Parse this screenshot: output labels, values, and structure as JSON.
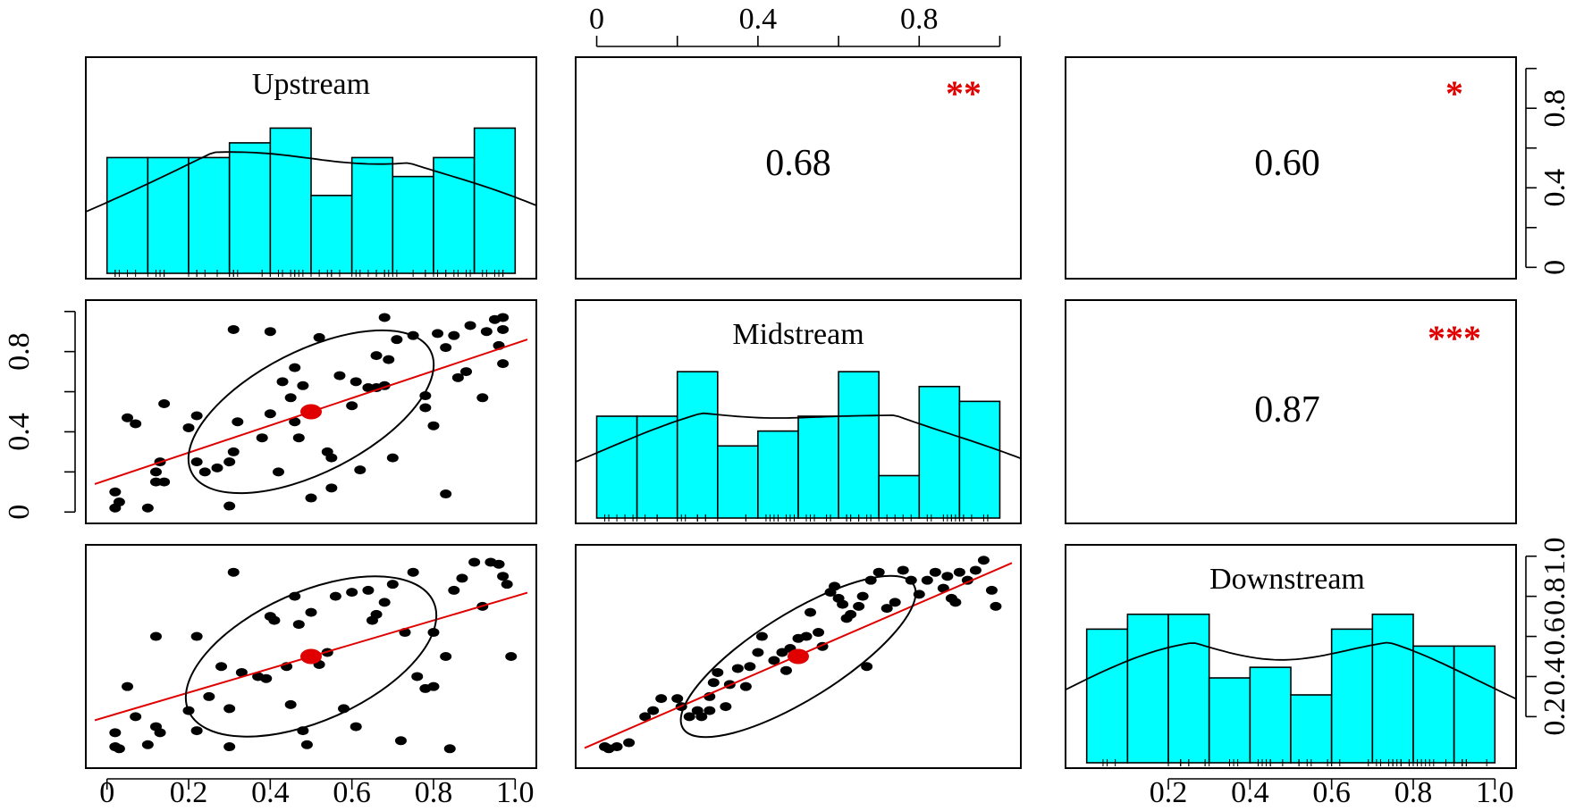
{
  "chart_data": {
    "type": "scatter-matrix",
    "variables": [
      "Upstream",
      "Midstream",
      "Downstream"
    ],
    "top_axis_ticks": [
      "0",
      "0.4",
      "0.8"
    ],
    "right_axis_top_ticks": [
      "0",
      "0.4",
      "0.8"
    ],
    "left_axis_mid_ticks": [
      "0",
      "0.4",
      "0.8"
    ],
    "right_axis_bottom_ticks": [
      "0.2",
      "0.4",
      "0.6",
      "0.8",
      "1.0"
    ],
    "bottom_axis_left_ticks": [
      "0",
      "0.2",
      "0.4",
      "0.6",
      "0.8",
      "1.0"
    ],
    "bottom_axis_right_ticks": [
      "0.2",
      "0.4",
      "0.6",
      "0.8",
      "1.0"
    ],
    "correlations": [
      {
        "pair": [
          "Upstream",
          "Midstream"
        ],
        "value": "0.68",
        "stars": "**"
      },
      {
        "pair": [
          "Upstream",
          "Downstream"
        ],
        "value": "0.60",
        "stars": "*"
      },
      {
        "pair": [
          "Midstream",
          "Downstream"
        ],
        "value": "0.87",
        "stars": "***"
      }
    ],
    "histograms": {
      "Upstream": {
        "bins": [
          0,
          0.1,
          0.2,
          0.3,
          0.4,
          0.5,
          0.6,
          0.7,
          0.8,
          0.9,
          1.0
        ],
        "heights": [
          0.55,
          0.55,
          0.55,
          0.62,
          0.69,
          0.37,
          0.55,
          0.46,
          0.55,
          0.69
        ]
      },
      "Midstream": {
        "bins": [
          0,
          0.1,
          0.2,
          0.3,
          0.4,
          0.5,
          0.6,
          0.7,
          0.8,
          0.9,
          1.0
        ],
        "heights": [
          0.48,
          0.48,
          0.69,
          0.34,
          0.41,
          0.48,
          0.69,
          0.2,
          0.62,
          0.55
        ]
      },
      "Downstream": {
        "bins": [
          0,
          0.1,
          0.2,
          0.3,
          0.4,
          0.5,
          0.6,
          0.7,
          0.8,
          0.9,
          1.0
        ],
        "heights": [
          0.63,
          0.7,
          0.7,
          0.4,
          0.45,
          0.32,
          0.63,
          0.7,
          0.55,
          0.55
        ]
      }
    },
    "scatter": {
      "up_mid": [
        [
          0.02,
          0.02
        ],
        [
          0.03,
          0.05
        ],
        [
          0.02,
          0.1
        ],
        [
          0.1,
          0.02
        ],
        [
          0.12,
          0.15
        ],
        [
          0.14,
          0.15
        ],
        [
          0.12,
          0.2
        ],
        [
          0.13,
          0.25
        ],
        [
          0.05,
          0.47
        ],
        [
          0.07,
          0.44
        ],
        [
          0.14,
          0.54
        ],
        [
          0.2,
          0.42
        ],
        [
          0.22,
          0.48
        ],
        [
          0.22,
          0.25
        ],
        [
          0.24,
          0.2
        ],
        [
          0.27,
          0.22
        ],
        [
          0.3,
          0.25
        ],
        [
          0.31,
          0.3
        ],
        [
          0.32,
          0.45
        ],
        [
          0.3,
          0.03
        ],
        [
          0.31,
          0.91
        ],
        [
          0.4,
          0.9
        ],
        [
          0.38,
          0.37
        ],
        [
          0.4,
          0.49
        ],
        [
          0.42,
          0.2
        ],
        [
          0.46,
          0.45
        ],
        [
          0.45,
          0.57
        ],
        [
          0.43,
          0.65
        ],
        [
          0.46,
          0.72
        ],
        [
          0.48,
          0.63
        ],
        [
          0.47,
          0.37
        ],
        [
          0.52,
          0.87
        ],
        [
          0.54,
          0.3
        ],
        [
          0.55,
          0.27
        ],
        [
          0.55,
          0.12
        ],
        [
          0.5,
          0.07
        ],
        [
          0.57,
          0.68
        ],
        [
          0.6,
          0.53
        ],
        [
          0.61,
          0.65
        ],
        [
          0.62,
          0.21
        ],
        [
          0.64,
          0.62
        ],
        [
          0.66,
          0.62
        ],
        [
          0.68,
          0.97
        ],
        [
          0.68,
          0.63
        ],
        [
          0.66,
          0.78
        ],
        [
          0.69,
          0.76
        ],
        [
          0.7,
          0.27
        ],
        [
          0.71,
          0.86
        ],
        [
          0.75,
          0.88
        ],
        [
          0.78,
          0.58
        ],
        [
          0.78,
          0.52
        ],
        [
          0.81,
          0.89
        ],
        [
          0.8,
          0.43
        ],
        [
          0.83,
          0.82
        ],
        [
          0.83,
          0.09
        ],
        [
          0.85,
          0.88
        ],
        [
          0.86,
          0.67
        ],
        [
          0.88,
          0.7
        ],
        [
          0.89,
          0.93
        ],
        [
          0.92,
          0.57
        ],
        [
          0.93,
          0.9
        ],
        [
          0.95,
          0.96
        ],
        [
          0.96,
          0.83
        ],
        [
          0.97,
          0.97
        ],
        [
          0.97,
          0.91
        ],
        [
          0.97,
          0.74
        ]
      ],
      "up_down": [
        [
          0.02,
          0.05
        ],
        [
          0.03,
          0.04
        ],
        [
          0.02,
          0.12
        ],
        [
          0.05,
          0.35
        ],
        [
          0.07,
          0.2
        ],
        [
          0.1,
          0.06
        ],
        [
          0.12,
          0.15
        ],
        [
          0.13,
          0.12
        ],
        [
          0.12,
          0.6
        ],
        [
          0.2,
          0.23
        ],
        [
          0.22,
          0.6
        ],
        [
          0.22,
          0.13
        ],
        [
          0.25,
          0.3
        ],
        [
          0.28,
          0.45
        ],
        [
          0.3,
          0.24
        ],
        [
          0.3,
          0.05
        ],
        [
          0.31,
          0.92
        ],
        [
          0.33,
          0.42
        ],
        [
          0.37,
          0.4
        ],
        [
          0.39,
          0.39
        ],
        [
          0.4,
          0.7
        ],
        [
          0.41,
          0.68
        ],
        [
          0.44,
          0.45
        ],
        [
          0.45,
          0.26
        ],
        [
          0.46,
          0.8
        ],
        [
          0.47,
          0.66
        ],
        [
          0.5,
          0.72
        ],
        [
          0.49,
          0.06
        ],
        [
          0.48,
          0.13
        ],
        [
          0.52,
          0.46
        ],
        [
          0.54,
          0.52
        ],
        [
          0.56,
          0.8
        ],
        [
          0.58,
          0.24
        ],
        [
          0.6,
          0.82
        ],
        [
          0.61,
          0.15
        ],
        [
          0.64,
          0.83
        ],
        [
          0.65,
          0.68
        ],
        [
          0.66,
          0.71
        ],
        [
          0.68,
          0.77
        ],
        [
          0.7,
          0.86
        ],
        [
          0.72,
          0.08
        ],
        [
          0.73,
          0.62
        ],
        [
          0.75,
          0.92
        ],
        [
          0.76,
          0.4
        ],
        [
          0.78,
          0.34
        ],
        [
          0.8,
          0.35
        ],
        [
          0.8,
          0.62
        ],
        [
          0.83,
          0.5
        ],
        [
          0.84,
          0.04
        ],
        [
          0.85,
          0.83
        ],
        [
          0.87,
          0.89
        ],
        [
          0.9,
          0.97
        ],
        [
          0.92,
          0.75
        ],
        [
          0.94,
          0.97
        ],
        [
          0.96,
          0.96
        ],
        [
          0.97,
          0.9
        ],
        [
          0.98,
          0.86
        ],
        [
          0.99,
          0.5
        ]
      ],
      "mid_down": [
        [
          0.02,
          0.05
        ],
        [
          0.03,
          0.04
        ],
        [
          0.05,
          0.05
        ],
        [
          0.08,
          0.07
        ],
        [
          0.12,
          0.2
        ],
        [
          0.14,
          0.23
        ],
        [
          0.16,
          0.29
        ],
        [
          0.2,
          0.29
        ],
        [
          0.21,
          0.25
        ],
        [
          0.23,
          0.2
        ],
        [
          0.25,
          0.23
        ],
        [
          0.26,
          0.2
        ],
        [
          0.28,
          0.23
        ],
        [
          0.28,
          0.3
        ],
        [
          0.29,
          0.37
        ],
        [
          0.3,
          0.42
        ],
        [
          0.32,
          0.25
        ],
        [
          0.33,
          0.36
        ],
        [
          0.35,
          0.44
        ],
        [
          0.37,
          0.35
        ],
        [
          0.38,
          0.45
        ],
        [
          0.4,
          0.52
        ],
        [
          0.41,
          0.6
        ],
        [
          0.44,
          0.48
        ],
        [
          0.46,
          0.52
        ],
        [
          0.47,
          0.43
        ],
        [
          0.48,
          0.54
        ],
        [
          0.5,
          0.59
        ],
        [
          0.52,
          0.6
        ],
        [
          0.53,
          0.72
        ],
        [
          0.55,
          0.62
        ],
        [
          0.56,
          0.55
        ],
        [
          0.58,
          0.82
        ],
        [
          0.59,
          0.85
        ],
        [
          0.6,
          0.79
        ],
        [
          0.61,
          0.76
        ],
        [
          0.62,
          0.69
        ],
        [
          0.63,
          0.71
        ],
        [
          0.65,
          0.75
        ],
        [
          0.66,
          0.8
        ],
        [
          0.67,
          0.45
        ],
        [
          0.68,
          0.88
        ],
        [
          0.7,
          0.92
        ],
        [
          0.72,
          0.74
        ],
        [
          0.74,
          0.77
        ],
        [
          0.76,
          0.93
        ],
        [
          0.78,
          0.88
        ],
        [
          0.8,
          0.81
        ],
        [
          0.82,
          0.88
        ],
        [
          0.84,
          0.92
        ],
        [
          0.86,
          0.84
        ],
        [
          0.87,
          0.9
        ],
        [
          0.88,
          0.79
        ],
        [
          0.89,
          0.77
        ],
        [
          0.9,
          0.92
        ],
        [
          0.92,
          0.88
        ],
        [
          0.94,
          0.93
        ],
        [
          0.96,
          0.98
        ],
        [
          0.98,
          0.83
        ],
        [
          0.99,
          0.75
        ]
      ]
    }
  }
}
